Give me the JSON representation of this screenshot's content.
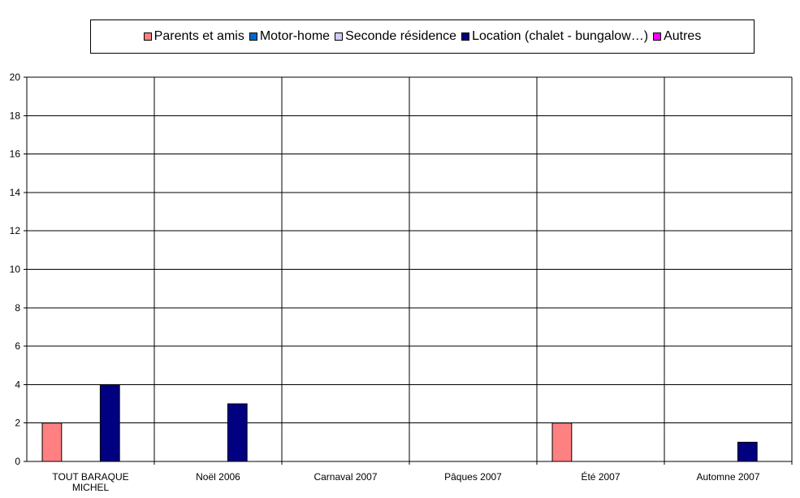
{
  "chart_data": {
    "type": "bar",
    "title": "",
    "xlabel": "",
    "ylabel": "",
    "categories": [
      "TOUT BARAQUE MICHEL",
      "Noël 2006",
      "Carnaval 2007",
      "Pâques 2007",
      "Été 2007",
      "Automne 2007"
    ],
    "category_label_lines": [
      [
        "TOUT BARAQUE",
        "MICHEL"
      ],
      [
        "Noël 2006"
      ],
      [
        "Carnaval 2007"
      ],
      [
        "Pâques 2007"
      ],
      [
        "Été 2007"
      ],
      [
        "Automne 2007"
      ]
    ],
    "series": [
      {
        "name": "Parents et amis",
        "color": "#FF8080",
        "values": [
          2,
          0,
          0,
          0,
          2,
          0
        ]
      },
      {
        "name": "Motor-home",
        "color": "#0066CC",
        "values": [
          0,
          0,
          0,
          0,
          0,
          0
        ]
      },
      {
        "name": "Seconde résidence",
        "color": "#CCCCFF",
        "values": [
          0,
          0,
          0,
          0,
          0,
          0
        ]
      },
      {
        "name": "Location (chalet - bungalow…)",
        "color": "#000080",
        "values": [
          4,
          3,
          0,
          0,
          0,
          1
        ]
      },
      {
        "name": "Autres",
        "color": "#FF00FF",
        "values": [
          0,
          0,
          0,
          0,
          0,
          0
        ]
      }
    ],
    "ylim": [
      0,
      20
    ],
    "yticks": [
      "0",
      "2",
      "4",
      "6",
      "8",
      "10",
      "12",
      "14",
      "16",
      "18",
      "20"
    ],
    "grid": true,
    "legend_position": "top"
  }
}
